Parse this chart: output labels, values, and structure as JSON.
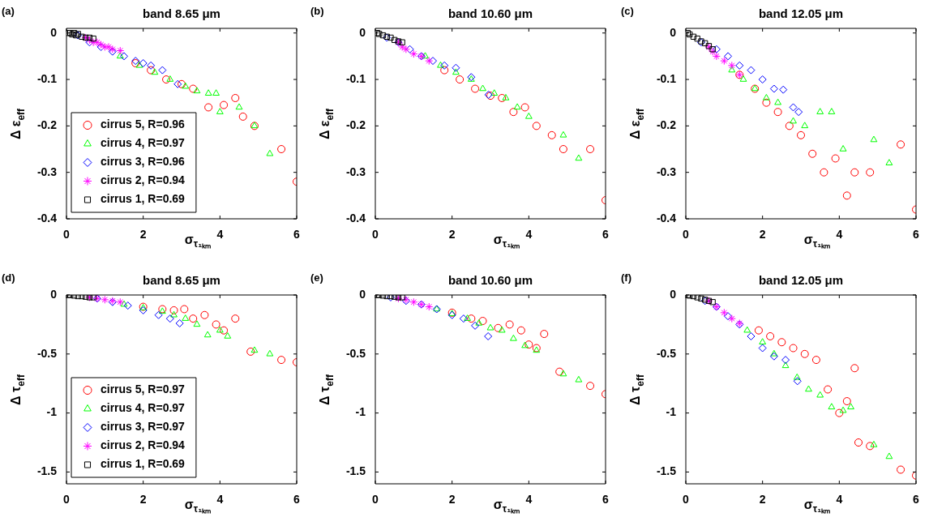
{
  "chart_data": [
    {
      "type": "scatter",
      "title": "band 8.65 μm",
      "xlabel": "σ$_{τ₁ₖₘ}$",
      "ylabel": "Δ ε$_{eff}$",
      "annotations": [
        "(a)"
      ],
      "xlim": [
        0,
        6
      ],
      "xticks": [
        0,
        2,
        4,
        6
      ],
      "ylim": [
        -0.4,
        0.01
      ],
      "yticks": [
        0,
        -0.1,
        -0.2,
        -0.3,
        -0.4
      ],
      "legend": "bottom left",
      "series": [
        {
          "name": "cirrus 5, R=0.96",
          "color": "#ff0000",
          "marker": "circle",
          "x": [
            1.8,
            2.2,
            2.6,
            3.0,
            3.3,
            3.7,
            4.1,
            4.4,
            4.6,
            4.9,
            5.6,
            6.0
          ],
          "values": [
            -0.065,
            -0.08,
            -0.1,
            -0.11,
            -0.12,
            -0.16,
            -0.155,
            -0.14,
            -0.18,
            -0.2,
            -0.25,
            -0.32
          ]
        },
        {
          "name": "cirrus 4, R=0.97",
          "color": "#00ff00",
          "marker": "triangle",
          "x": [
            1.4,
            1.9,
            2.3,
            2.7,
            3.1,
            3.4,
            3.7,
            3.9,
            4.0,
            4.5,
            4.9,
            5.3
          ],
          "values": [
            -0.05,
            -0.07,
            -0.085,
            -0.1,
            -0.115,
            -0.125,
            -0.13,
            -0.13,
            -0.17,
            -0.16,
            -0.2,
            -0.26
          ]
        },
        {
          "name": "cirrus 3, R=0.96",
          "color": "#0000ff",
          "marker": "diamond",
          "x": [
            0.3,
            0.6,
            0.9,
            1.2,
            1.5,
            1.8,
            2.0,
            2.2,
            2.5,
            2.9
          ],
          "values": [
            -0.005,
            -0.02,
            -0.03,
            -0.04,
            -0.05,
            -0.06,
            -0.065,
            -0.07,
            -0.08,
            -0.11
          ]
        },
        {
          "name": "cirrus 2, R=0.94",
          "color": "#ff00ff",
          "marker": "cross",
          "x": [
            0.5,
            0.6,
            0.7,
            0.8,
            0.9,
            1.0,
            1.1,
            1.2,
            1.4
          ],
          "values": [
            -0.01,
            -0.015,
            -0.02,
            -0.02,
            -0.025,
            -0.03,
            -0.03,
            -0.035,
            -0.038
          ]
        },
        {
          "name": "cirrus 1, R=0.69",
          "color": "#000000",
          "marker": "square",
          "x": [
            0.05,
            0.1,
            0.15,
            0.2,
            0.25,
            0.3,
            0.4,
            0.5,
            0.6,
            0.7
          ],
          "values": [
            0,
            0,
            -0.003,
            0,
            -0.005,
            -0.002,
            -0.008,
            -0.01,
            -0.01,
            -0.012
          ]
        }
      ]
    },
    {
      "type": "scatter",
      "title": "band 10.60 μm",
      "xlabel": "σ$_{τ₁ₖₘ}$",
      "ylabel": "Δ ε$_{eff}$",
      "annotations": [
        "(b)"
      ],
      "xlim": [
        0,
        6
      ],
      "xticks": [
        0,
        2,
        4,
        6
      ],
      "ylim": [
        -0.4,
        0.01
      ],
      "yticks": [
        0,
        -0.1,
        -0.2,
        -0.3,
        -0.4
      ],
      "series": [
        {
          "color": "#ff0000",
          "marker": "circle",
          "x": [
            1.8,
            2.2,
            2.6,
            3.0,
            3.3,
            3.6,
            3.9,
            4.2,
            4.6,
            4.9,
            5.6,
            6.0
          ],
          "values": [
            -0.08,
            -0.1,
            -0.12,
            -0.135,
            -0.14,
            -0.17,
            -0.16,
            -0.2,
            -0.22,
            -0.25,
            -0.25,
            -0.36
          ]
        },
        {
          "color": "#00ff00",
          "marker": "triangle",
          "x": [
            1.3,
            1.7,
            2.1,
            2.5,
            2.8,
            3.1,
            3.4,
            3.7,
            4.0,
            4.9,
            5.3
          ],
          "values": [
            -0.05,
            -0.07,
            -0.085,
            -0.1,
            -0.12,
            -0.13,
            -0.14,
            -0.16,
            -0.18,
            -0.22,
            -0.27
          ]
        },
        {
          "color": "#0000ff",
          "marker": "diamond",
          "x": [
            0.3,
            0.6,
            0.9,
            1.2,
            1.5,
            1.8,
            2.1,
            2.5,
            2.95
          ],
          "values": [
            -0.01,
            -0.02,
            -0.035,
            -0.05,
            -0.06,
            -0.07,
            -0.075,
            -0.095,
            -0.133
          ]
        },
        {
          "color": "#ff00ff",
          "marker": "cross",
          "x": [
            0.6,
            0.7,
            0.8,
            1.0,
            1.2,
            1.4
          ],
          "values": [
            -0.02,
            -0.03,
            -0.035,
            -0.045,
            -0.05,
            -0.06
          ]
        },
        {
          "color": "#000000",
          "marker": "square",
          "x": [
            0.05,
            0.1,
            0.2,
            0.3,
            0.4,
            0.5,
            0.6,
            0.7
          ],
          "values": [
            0,
            -0.002,
            -0.005,
            -0.008,
            -0.01,
            -0.015,
            -0.018,
            -0.02
          ]
        }
      ]
    },
    {
      "type": "scatter",
      "title": "band 12.05 μm",
      "xlabel": "σ$_{τ₁ₖₘ}$",
      "ylabel": "Δ ε$_{eff}$",
      "annotations": [
        "(c)"
      ],
      "xlim": [
        0,
        6
      ],
      "xticks": [
        0,
        2,
        4,
        6
      ],
      "ylim": [
        -0.4,
        0.01
      ],
      "yticks": [
        0,
        -0.1,
        -0.2,
        -0.3,
        -0.4
      ],
      "series": [
        {
          "color": "#ff0000",
          "marker": "circle",
          "x": [
            1.4,
            1.8,
            2.1,
            2.4,
            2.7,
            3.0,
            3.3,
            3.6,
            3.9,
            4.2,
            4.4,
            4.8,
            5.6,
            6.0
          ],
          "values": [
            -0.09,
            -0.12,
            -0.15,
            -0.17,
            -0.2,
            -0.22,
            -0.26,
            -0.3,
            -0.27,
            -0.35,
            -0.3,
            -0.3,
            -0.24,
            -0.38
          ]
        },
        {
          "color": "#00ff00",
          "marker": "triangle",
          "x": [
            1.2,
            1.5,
            1.8,
            2.1,
            2.4,
            2.8,
            3.1,
            3.5,
            3.8,
            4.1,
            4.9,
            5.3
          ],
          "values": [
            -0.08,
            -0.1,
            -0.12,
            -0.14,
            -0.15,
            -0.19,
            -0.2,
            -0.17,
            -0.17,
            -0.25,
            -0.23,
            -0.28
          ]
        },
        {
          "color": "#0000ff",
          "marker": "diamond",
          "x": [
            0.4,
            0.8,
            1.1,
            1.4,
            1.7,
            2.0,
            2.3,
            2.54,
            2.8,
            2.94
          ],
          "values": [
            -0.02,
            -0.035,
            -0.05,
            -0.07,
            -0.08,
            -0.1,
            -0.12,
            -0.122,
            -0.16,
            -0.17
          ]
        },
        {
          "color": "#ff00ff",
          "marker": "cross",
          "x": [
            0.6,
            0.7,
            0.8,
            1.0,
            1.2,
            1.4
          ],
          "values": [
            -0.03,
            -0.04,
            -0.05,
            -0.06,
            -0.07,
            -0.09
          ]
        },
        {
          "color": "#000000",
          "marker": "square",
          "x": [
            0.05,
            0.1,
            0.2,
            0.3,
            0.4,
            0.5,
            0.6,
            0.7
          ],
          "values": [
            0,
            -0.003,
            -0.008,
            -0.012,
            -0.018,
            -0.022,
            -0.028,
            -0.035
          ]
        }
      ]
    },
    {
      "type": "scatter",
      "title": "band 8.65 μm",
      "xlabel": "σ$_{τ₁ₖₘ}$",
      "ylabel": "Δ τ$_{eff}$",
      "annotations": [
        "(d)"
      ],
      "xlim": [
        0,
        6
      ],
      "xticks": [
        0,
        2,
        4,
        6
      ],
      "ylim": [
        -1.6,
        0
      ],
      "yticks": [
        0,
        -0.5,
        -1,
        -1.5
      ],
      "legend": "bottom left",
      "series": [
        {
          "name": "cirrus 5, R=0.97",
          "color": "#ff0000",
          "marker": "circle",
          "x": [
            2.0,
            2.5,
            2.8,
            3.07,
            3.3,
            3.6,
            3.9,
            4.1,
            4.4,
            4.8,
            5.6,
            6.0
          ],
          "values": [
            -0.1,
            -0.12,
            -0.13,
            -0.12,
            -0.2,
            -0.17,
            -0.25,
            -0.3,
            -0.2,
            -0.48,
            -0.55,
            -0.57
          ]
        },
        {
          "name": "cirrus 4, R=0.97",
          "color": "#00ff00",
          "marker": "triangle",
          "x": [
            1.5,
            2.0,
            2.5,
            2.8,
            3.1,
            3.4,
            3.68,
            4.0,
            4.2,
            4.9,
            5.3
          ],
          "values": [
            -0.08,
            -0.11,
            -0.14,
            -0.17,
            -0.2,
            -0.25,
            -0.34,
            -0.3,
            -0.35,
            -0.47,
            -0.5
          ]
        },
        {
          "name": "cirrus 3, R=0.97",
          "color": "#0000ff",
          "marker": "diamond",
          "x": [
            0.8,
            1.2,
            1.6,
            2.0,
            2.4,
            2.7,
            2.95
          ],
          "values": [
            -0.03,
            -0.06,
            -0.09,
            -0.13,
            -0.17,
            -0.2,
            -0.24
          ]
        },
        {
          "name": "cirrus 2, R=0.94",
          "color": "#ff00ff",
          "marker": "cross",
          "x": [
            0.6,
            0.8,
            1.0,
            1.2,
            1.4
          ],
          "values": [
            -0.02,
            -0.03,
            -0.04,
            -0.05,
            -0.06
          ]
        },
        {
          "name": "cirrus 1, R=0.69",
          "color": "#000000",
          "marker": "square",
          "x": [
            0.05,
            0.1,
            0.2,
            0.3,
            0.4,
            0.5,
            0.6,
            0.7
          ],
          "values": [
            0,
            0,
            -0.005,
            -0.01,
            -0.01,
            -0.015,
            -0.02,
            -0.02
          ]
        }
      ]
    },
    {
      "type": "scatter",
      "title": "band 10.60 μm",
      "xlabel": "σ$_{τ₁ₖₘ}$",
      "ylabel": "Δ τ$_{eff}$",
      "annotations": [
        "(e)"
      ],
      "xlim": [
        0,
        6
      ],
      "xticks": [
        0,
        2,
        4,
        6
      ],
      "ylim": [
        -1.6,
        0
      ],
      "yticks": [
        0,
        -0.5,
        -1,
        -1.5
      ],
      "series": [
        {
          "color": "#ff0000",
          "marker": "circle",
          "x": [
            2.0,
            2.5,
            2.8,
            3.2,
            3.5,
            3.8,
            4.0,
            4.2,
            4.4,
            4.8,
            5.6,
            6.0
          ],
          "values": [
            -0.15,
            -0.2,
            -0.22,
            -0.28,
            -0.25,
            -0.3,
            -0.42,
            -0.45,
            -0.33,
            -0.65,
            -0.77,
            -0.84
          ]
        },
        {
          "color": "#00ff00",
          "marker": "triangle",
          "x": [
            1.6,
            2.0,
            2.4,
            2.7,
            3.0,
            3.3,
            3.6,
            3.9,
            4.2,
            4.9,
            5.3
          ],
          "values": [
            -0.12,
            -0.16,
            -0.2,
            -0.24,
            -0.28,
            -0.3,
            -0.37,
            -0.43,
            -0.47,
            -0.67,
            -0.72
          ]
        },
        {
          "color": "#0000ff",
          "marker": "diamond",
          "x": [
            0.4,
            0.8,
            1.2,
            1.6,
            2.0,
            2.3,
            2.6,
            2.94
          ],
          "values": [
            -0.02,
            -0.05,
            -0.08,
            -0.12,
            -0.17,
            -0.2,
            -0.26,
            -0.35
          ]
        },
        {
          "color": "#ff00ff",
          "marker": "cross",
          "x": [
            0.6,
            0.8,
            1.0,
            1.2,
            1.4
          ],
          "values": [
            -0.03,
            -0.04,
            -0.06,
            -0.08,
            -0.1
          ]
        },
        {
          "color": "#000000",
          "marker": "square",
          "x": [
            0.05,
            0.1,
            0.2,
            0.3,
            0.4,
            0.5,
            0.6,
            0.7
          ],
          "values": [
            0,
            0,
            -0.005,
            -0.01,
            -0.01,
            -0.015,
            -0.02,
            -0.02
          ]
        }
      ]
    },
    {
      "type": "scatter",
      "title": "band 12.05 μm",
      "xlabel": "σ$_{τ₁ₖₘ}$",
      "ylabel": "Δ τ$_{eff}$",
      "annotations": [
        "(f)"
      ],
      "xlim": [
        0,
        6
      ],
      "xticks": [
        0,
        2,
        4,
        6
      ],
      "ylim": [
        -1.6,
        0
      ],
      "yticks": [
        0,
        -0.5,
        -1,
        -1.5
      ],
      "series": [
        {
          "color": "#ff0000",
          "marker": "circle",
          "x": [
            1.9,
            2.2,
            2.5,
            2.8,
            3.1,
            3.4,
            3.7,
            4.0,
            4.2,
            4.4,
            4.5,
            4.8,
            5.6,
            6.0
          ],
          "values": [
            -0.3,
            -0.35,
            -0.4,
            -0.45,
            -0.5,
            -0.55,
            -0.8,
            -1.0,
            -0.9,
            -0.62,
            -1.25,
            -1.28,
            -1.48,
            -1.53
          ]
        },
        {
          "color": "#00ff00",
          "marker": "triangle",
          "x": [
            1.6,
            2.0,
            2.3,
            2.6,
            2.9,
            3.2,
            3.5,
            3.8,
            4.1,
            4.3,
            4.9,
            5.3
          ],
          "values": [
            -0.3,
            -0.4,
            -0.5,
            -0.6,
            -0.7,
            -0.8,
            -0.85,
            -0.95,
            -0.98,
            -0.95,
            -1.27,
            -1.37
          ]
        },
        {
          "color": "#0000ff",
          "marker": "diamond",
          "x": [
            0.5,
            0.8,
            1.1,
            1.4,
            1.7,
            2.0,
            2.3,
            2.6,
            2.91
          ],
          "values": [
            -0.05,
            -0.1,
            -0.18,
            -0.25,
            -0.35,
            -0.45,
            -0.52,
            -0.55,
            -0.73
          ]
        },
        {
          "color": "#ff00ff",
          "marker": "cross",
          "x": [
            0.6,
            0.8,
            1.0,
            1.2,
            1.4
          ],
          "values": [
            -0.05,
            -0.1,
            -0.15,
            -0.2,
            -0.24
          ]
        },
        {
          "color": "#000000",
          "marker": "square",
          "x": [
            0.05,
            0.1,
            0.2,
            0.3,
            0.4,
            0.5,
            0.6,
            0.7
          ],
          "values": [
            0,
            -0.005,
            -0.01,
            -0.02,
            -0.03,
            -0.04,
            -0.05,
            -0.06
          ]
        }
      ]
    }
  ]
}
